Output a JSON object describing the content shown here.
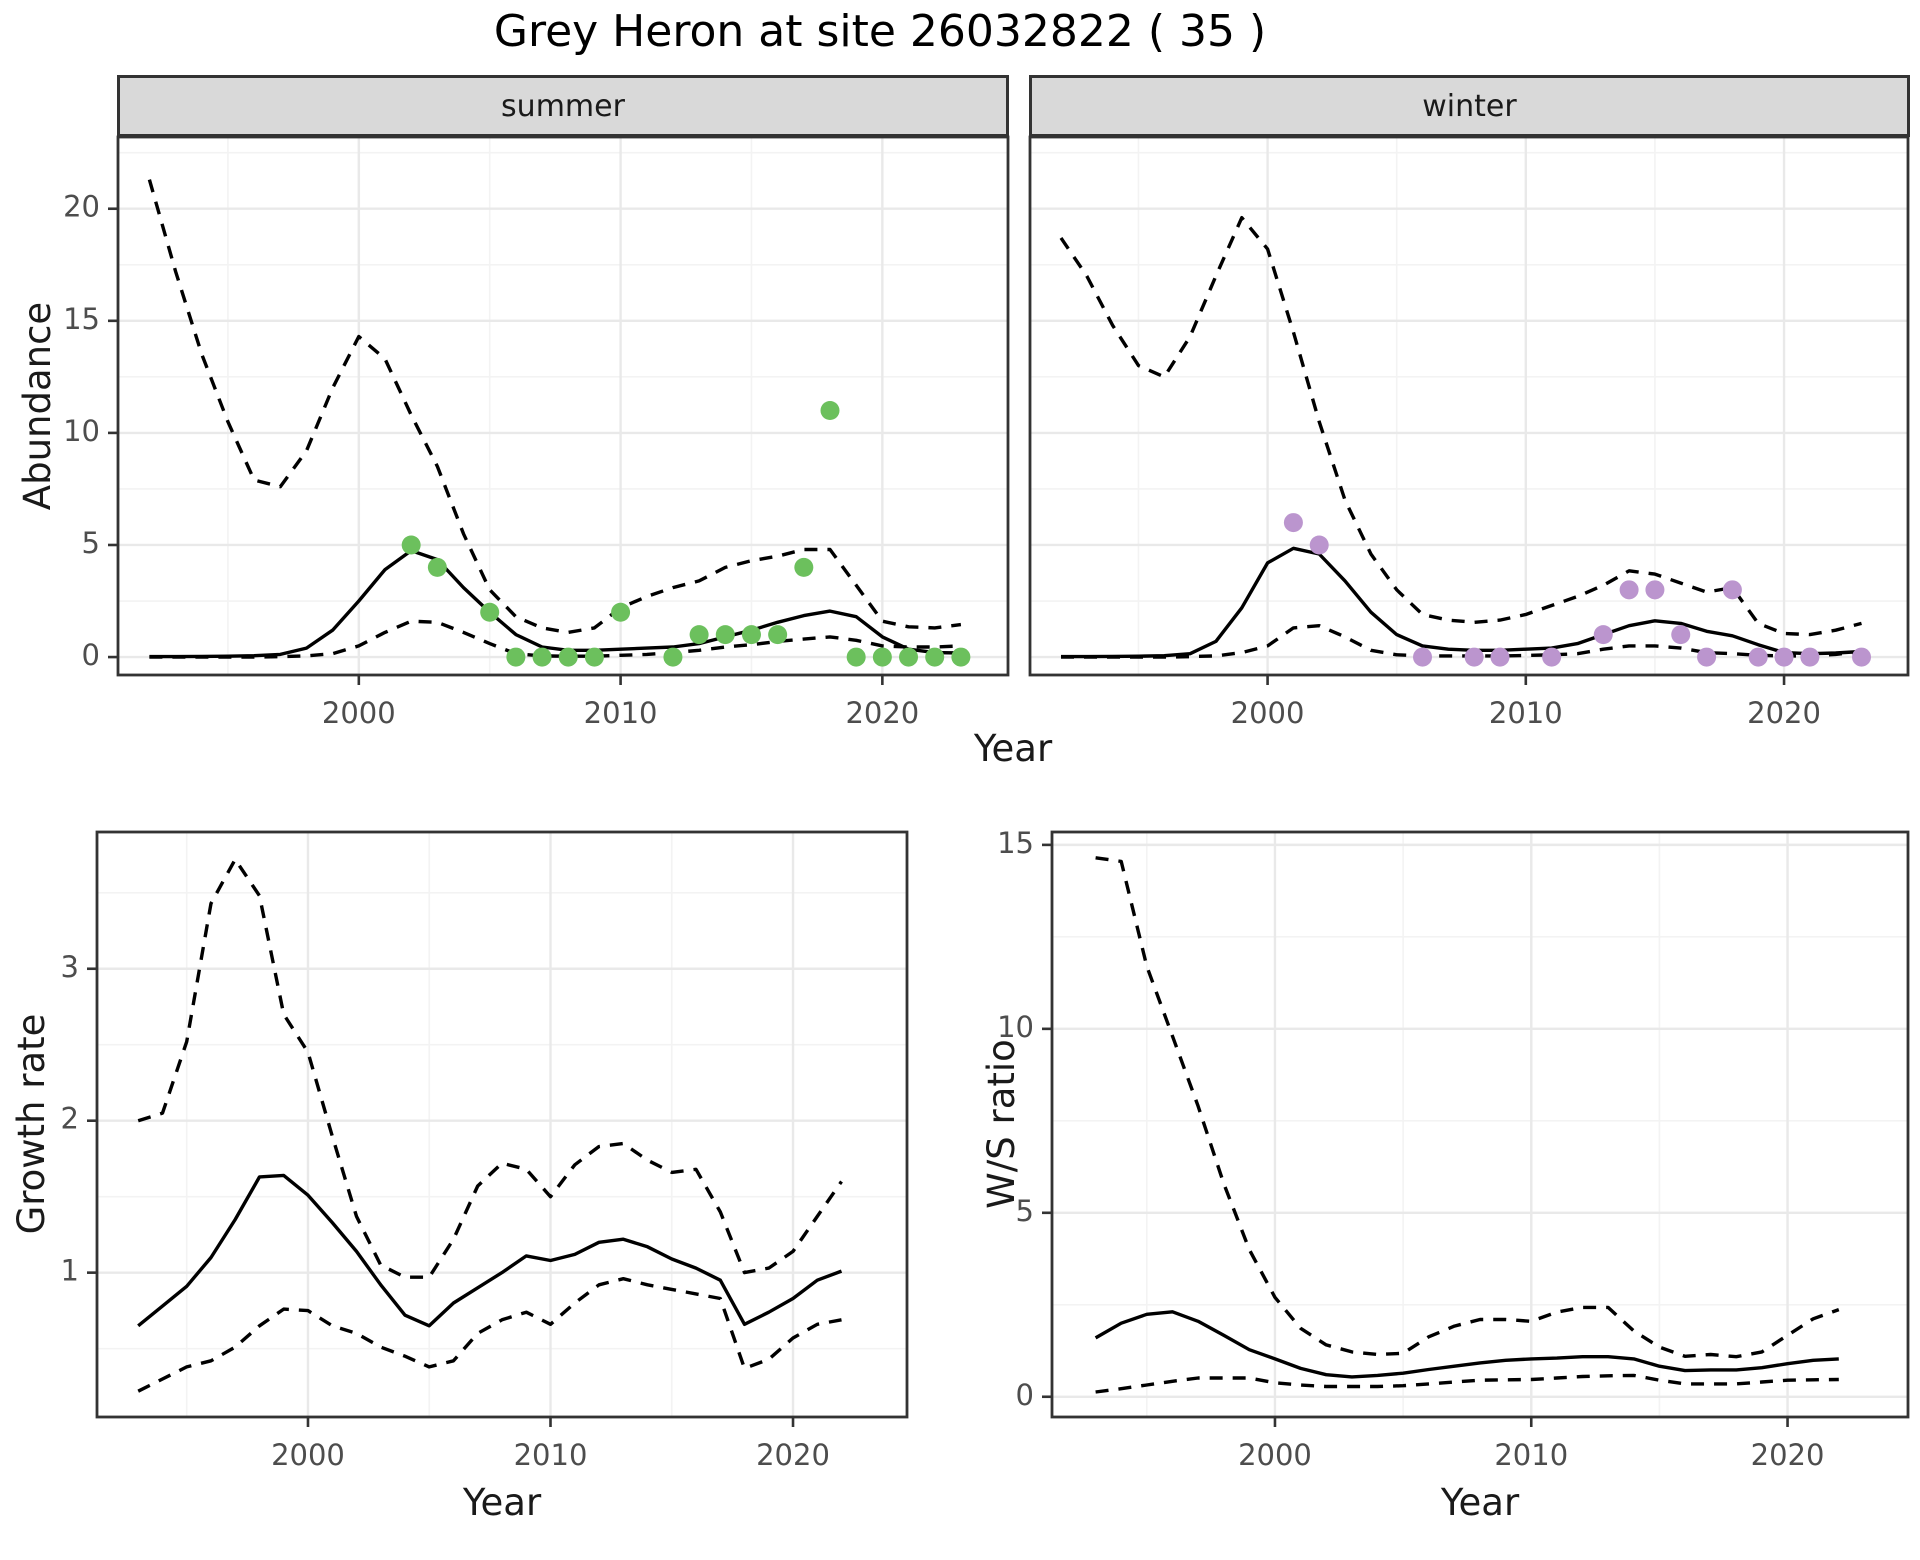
{
  "title": "Grey Heron at site 26032822 ( 35 )",
  "top_row": {
    "ylabel": "Abundance",
    "xlabel": "Year",
    "facets": [
      {
        "label": "summer"
      },
      {
        "label": "winter"
      }
    ]
  },
  "bottom_left": {
    "ylabel": "Growth rate",
    "xlabel": "Year"
  },
  "bottom_right": {
    "ylabel": "W/S ratio",
    "xlabel": "Year"
  },
  "colors": {
    "summer_point": "#6CC05D",
    "winter_point": "#BB95CE",
    "line": "#000000",
    "strip_bg": "#D9D9D9",
    "panel_border": "#333333",
    "grid_major": "#E9E9E9",
    "grid_minor": "#F3F3F3",
    "tick_label": "#4D4D4D",
    "tick_mark": "#333333"
  },
  "chart_data": [
    {
      "id": "abundance-summer",
      "type": "line",
      "title": "summer",
      "xlabel": "Year",
      "ylabel": "Abundance",
      "xlim": [
        1990.8,
        2024.8
      ],
      "ylim": [
        -0.8,
        23.2
      ],
      "xticks": [
        2000,
        2010,
        2020
      ],
      "xminor": [
        1995,
        2005,
        2015
      ],
      "yticks": [
        0,
        5,
        10,
        15,
        20
      ],
      "yminor": [
        2.5,
        7.5,
        12.5,
        17.5,
        22.5
      ],
      "point_color": "#6CC05D",
      "series": [
        {
          "name": "upper_ci",
          "style": "dashed",
          "x": [
            1992,
            1993,
            1994,
            1995,
            1996,
            1997,
            1998,
            1999,
            2000,
            2001,
            2002,
            2003,
            2004,
            2005,
            2006,
            2007,
            2008,
            2009,
            2010,
            2011,
            2012,
            2013,
            2014,
            2015,
            2016,
            2017,
            2018,
            2019,
            2020,
            2021,
            2022,
            2023
          ],
          "y": [
            21.3,
            17.2,
            13.5,
            10.5,
            7.9,
            7.6,
            9.2,
            12.0,
            14.3,
            13.3,
            10.8,
            8.5,
            5.5,
            3.0,
            1.8,
            1.3,
            1.1,
            1.3,
            2.2,
            2.7,
            3.1,
            3.4,
            4.0,
            4.3,
            4.5,
            4.8,
            4.8,
            3.2,
            1.6,
            1.35,
            1.3,
            1.45
          ]
        },
        {
          "name": "lower_ci",
          "style": "dashed",
          "x": [
            1992,
            1993,
            1994,
            1995,
            1996,
            1997,
            1998,
            1999,
            2000,
            2001,
            2002,
            2003,
            2004,
            2005,
            2006,
            2007,
            2008,
            2009,
            2010,
            2011,
            2012,
            2013,
            2014,
            2015,
            2016,
            2017,
            2018,
            2019,
            2020,
            2021,
            2022,
            2023
          ],
          "y": [
            0,
            0,
            0,
            0,
            0,
            0.02,
            0.05,
            0.15,
            0.5,
            1.1,
            1.6,
            1.55,
            1.1,
            0.6,
            0.15,
            0.05,
            0.04,
            0.04,
            0.08,
            0.12,
            0.2,
            0.3,
            0.45,
            0.55,
            0.7,
            0.8,
            0.9,
            0.75,
            0.5,
            0.45,
            0.45,
            0.5
          ]
        },
        {
          "name": "fit",
          "style": "solid",
          "x": [
            1992,
            1993,
            1994,
            1995,
            1996,
            1997,
            1998,
            1999,
            2000,
            2001,
            2002,
            2003,
            2004,
            2005,
            2006,
            2007,
            2008,
            2009,
            2010,
            2011,
            2012,
            2013,
            2014,
            2015,
            2016,
            2017,
            2018,
            2019,
            2020,
            2021,
            2022,
            2023
          ],
          "y": [
            0.02,
            0.02,
            0.03,
            0.04,
            0.06,
            0.12,
            0.4,
            1.2,
            2.5,
            3.9,
            4.75,
            4.35,
            3.1,
            2.0,
            1.0,
            0.45,
            0.3,
            0.3,
            0.35,
            0.4,
            0.45,
            0.6,
            0.9,
            1.2,
            1.55,
            1.85,
            2.05,
            1.8,
            0.9,
            0.35,
            0.2,
            0.18
          ]
        },
        {
          "name": "observed",
          "style": "points",
          "x": [
            2002,
            2003,
            2005,
            2006,
            2007,
            2008,
            2009,
            2010,
            2012,
            2013,
            2014,
            2015,
            2016,
            2017,
            2018,
            2019,
            2020,
            2021,
            2022,
            2023
          ],
          "y": [
            5,
            4,
            2,
            0,
            0,
            0,
            0,
            2,
            0,
            1,
            1,
            1,
            1,
            4,
            11,
            0,
            0,
            0,
            0,
            0
          ]
        }
      ]
    },
    {
      "id": "abundance-winter",
      "type": "line",
      "title": "winter",
      "xlabel": "Year",
      "ylabel": "Abundance",
      "xlim": [
        1990.8,
        2024.8
      ],
      "ylim": [
        -0.8,
        23.2
      ],
      "xticks": [
        2000,
        2010,
        2020
      ],
      "xminor": [
        1995,
        2005,
        2015
      ],
      "yticks": [
        0,
        5,
        10,
        15,
        20
      ],
      "yminor": [
        2.5,
        7.5,
        12.5,
        17.5,
        22.5
      ],
      "point_color": "#BB95CE",
      "series": [
        {
          "name": "upper_ci",
          "style": "dashed",
          "x": [
            1992,
            1993,
            1994,
            1995,
            1996,
            1997,
            1998,
            1999,
            2000,
            2001,
            2002,
            2003,
            2004,
            2005,
            2006,
            2007,
            2008,
            2009,
            2010,
            2011,
            2012,
            2013,
            2014,
            2015,
            2016,
            2017,
            2018,
            2019,
            2020,
            2021,
            2022,
            2023
          ],
          "y": [
            18.7,
            17.0,
            14.8,
            13.0,
            12.5,
            14.3,
            17.0,
            19.6,
            18.2,
            14.5,
            10.5,
            7.0,
            4.6,
            3.0,
            1.9,
            1.65,
            1.55,
            1.65,
            1.9,
            2.3,
            2.7,
            3.2,
            3.85,
            3.7,
            3.3,
            2.9,
            3.1,
            1.5,
            1.05,
            1.0,
            1.2,
            1.5
          ]
        },
        {
          "name": "lower_ci",
          "style": "dashed",
          "x": [
            1992,
            1993,
            1994,
            1995,
            1996,
            1997,
            1998,
            1999,
            2000,
            2001,
            2002,
            2003,
            2004,
            2005,
            2006,
            2007,
            2008,
            2009,
            2010,
            2011,
            2012,
            2013,
            2014,
            2015,
            2016,
            2017,
            2018,
            2019,
            2020,
            2021,
            2022,
            2023
          ],
          "y": [
            0,
            0,
            0,
            0,
            0,
            0.02,
            0.05,
            0.2,
            0.5,
            1.3,
            1.4,
            0.9,
            0.3,
            0.1,
            0.05,
            0.05,
            0.05,
            0.05,
            0.07,
            0.1,
            0.15,
            0.35,
            0.5,
            0.5,
            0.4,
            0.2,
            0.15,
            0.08,
            0.05,
            0.05,
            0.12,
            0.25
          ]
        },
        {
          "name": "fit",
          "style": "solid",
          "x": [
            1992,
            1993,
            1994,
            1995,
            1996,
            1997,
            1998,
            1999,
            2000,
            2001,
            2002,
            2003,
            2004,
            2005,
            2006,
            2007,
            2008,
            2009,
            2010,
            2011,
            2012,
            2013,
            2014,
            2015,
            2016,
            2017,
            2018,
            2019,
            2020,
            2021,
            2022,
            2023
          ],
          "y": [
            0.02,
            0.02,
            0.03,
            0.04,
            0.06,
            0.15,
            0.7,
            2.2,
            4.2,
            4.85,
            4.6,
            3.4,
            2.0,
            1.0,
            0.5,
            0.35,
            0.3,
            0.3,
            0.35,
            0.4,
            0.6,
            1.0,
            1.4,
            1.62,
            1.5,
            1.15,
            0.95,
            0.55,
            0.2,
            0.15,
            0.18,
            0.25
          ]
        },
        {
          "name": "observed",
          "style": "points",
          "x": [
            2001,
            2002,
            2006,
            2008,
            2009,
            2011,
            2013,
            2014,
            2015,
            2016,
            2017,
            2018,
            2019,
            2020,
            2021,
            2023
          ],
          "y": [
            6,
            5,
            0,
            0,
            0,
            0,
            1,
            3,
            3,
            1,
            0,
            3,
            0,
            0,
            0,
            0
          ]
        }
      ]
    },
    {
      "id": "growth-rate",
      "type": "line",
      "title": "",
      "xlabel": "Year",
      "ylabel": "Growth rate",
      "xlim": [
        1991.3,
        2024.7
      ],
      "ylim": [
        0.05,
        3.9
      ],
      "xticks": [
        2000,
        2010,
        2020
      ],
      "xminor": [
        1995,
        2005,
        2015
      ],
      "yticks": [
        1,
        2,
        3
      ],
      "yminor": [
        0.5,
        1.5,
        2.5,
        3.5
      ],
      "point_color": "#000000",
      "series": [
        {
          "name": "upper_ci",
          "style": "dashed",
          "x": [
            1993,
            1994,
            1995,
            1996,
            1997,
            1998,
            1999,
            2000,
            2001,
            2002,
            2003,
            2004,
            2005,
            2006,
            2007,
            2008,
            2009,
            2010,
            2011,
            2012,
            2013,
            2014,
            2015,
            2016,
            2017,
            2018,
            2019,
            2020,
            2021,
            2022
          ],
          "y": [
            2.0,
            2.05,
            2.52,
            3.43,
            3.72,
            3.48,
            2.7,
            2.45,
            1.9,
            1.37,
            1.05,
            0.97,
            0.97,
            1.22,
            1.57,
            1.72,
            1.68,
            1.5,
            1.71,
            1.83,
            1.85,
            1.74,
            1.66,
            1.68,
            1.4,
            1.0,
            1.03,
            1.14,
            1.37,
            1.6
          ]
        },
        {
          "name": "lower_ci",
          "style": "dashed",
          "x": [
            1993,
            1994,
            1995,
            1996,
            1997,
            1998,
            1999,
            2000,
            2001,
            2002,
            2003,
            2004,
            2005,
            2006,
            2007,
            2008,
            2009,
            2010,
            2011,
            2012,
            2013,
            2014,
            2015,
            2016,
            2017,
            2018,
            2019,
            2020,
            2021,
            2022
          ],
          "y": [
            0.22,
            0.3,
            0.38,
            0.42,
            0.51,
            0.65,
            0.76,
            0.75,
            0.65,
            0.6,
            0.51,
            0.45,
            0.38,
            0.42,
            0.6,
            0.69,
            0.74,
            0.66,
            0.8,
            0.92,
            0.96,
            0.92,
            0.89,
            0.86,
            0.83,
            0.37,
            0.43,
            0.57,
            0.66,
            0.69
          ]
        },
        {
          "name": "fit",
          "style": "solid",
          "x": [
            1993,
            1994,
            1995,
            1996,
            1997,
            1998,
            1999,
            2000,
            2001,
            2002,
            2003,
            2004,
            2005,
            2006,
            2007,
            2008,
            2009,
            2010,
            2011,
            2012,
            2013,
            2014,
            2015,
            2016,
            2017,
            2018,
            2019,
            2020,
            2021,
            2022
          ],
          "y": [
            0.65,
            0.78,
            0.91,
            1.1,
            1.35,
            1.63,
            1.64,
            1.51,
            1.33,
            1.14,
            0.92,
            0.72,
            0.65,
            0.8,
            0.9,
            1.0,
            1.11,
            1.08,
            1.12,
            1.2,
            1.22,
            1.17,
            1.09,
            1.03,
            0.95,
            0.66,
            0.74,
            0.83,
            0.95,
            1.01
          ]
        }
      ]
    },
    {
      "id": "ws-ratio",
      "type": "line",
      "title": "",
      "xlabel": "Year",
      "ylabel": "W/S ratio",
      "xlim": [
        1991.3,
        2024.7
      ],
      "ylim": [
        -0.55,
        15.35
      ],
      "xticks": [
        2000,
        2010,
        2020
      ],
      "xminor": [
        1995,
        2005,
        2015
      ],
      "yticks": [
        0,
        5,
        10,
        15
      ],
      "yminor": [
        2.5,
        7.5,
        12.5
      ],
      "point_color": "#000000",
      "series": [
        {
          "name": "upper_ci",
          "style": "dashed",
          "x": [
            1993,
            1994,
            1995,
            1996,
            1997,
            1998,
            1999,
            2000,
            2001,
            2002,
            2003,
            2004,
            2005,
            2006,
            2007,
            2008,
            2009,
            2010,
            2011,
            2012,
            2013,
            2014,
            2015,
            2016,
            2017,
            2018,
            2019,
            2020,
            2021,
            2022
          ],
          "y": [
            14.65,
            14.55,
            11.7,
            9.8,
            7.9,
            5.8,
            4.0,
            2.7,
            1.86,
            1.41,
            1.22,
            1.15,
            1.18,
            1.63,
            1.92,
            2.1,
            2.1,
            2.05,
            2.3,
            2.43,
            2.43,
            1.79,
            1.35,
            1.1,
            1.15,
            1.09,
            1.22,
            1.67,
            2.12,
            2.37
          ]
        },
        {
          "name": "lower_ci",
          "style": "dashed",
          "x": [
            1993,
            1994,
            1995,
            1996,
            1997,
            1998,
            1999,
            2000,
            2001,
            2002,
            2003,
            2004,
            2005,
            2006,
            2007,
            2008,
            2009,
            2010,
            2011,
            2012,
            2013,
            2014,
            2015,
            2016,
            2017,
            2018,
            2019,
            2020,
            2021,
            2022
          ],
          "y": [
            0.13,
            0.22,
            0.32,
            0.42,
            0.51,
            0.51,
            0.51,
            0.38,
            0.32,
            0.28,
            0.28,
            0.28,
            0.3,
            0.35,
            0.4,
            0.45,
            0.46,
            0.47,
            0.51,
            0.55,
            0.57,
            0.58,
            0.45,
            0.35,
            0.35,
            0.35,
            0.4,
            0.45,
            0.46,
            0.47
          ]
        },
        {
          "name": "fit",
          "style": "solid",
          "x": [
            1993,
            1994,
            1995,
            1996,
            1997,
            1998,
            1999,
            2000,
            2001,
            2002,
            2003,
            2004,
            2005,
            2006,
            2007,
            2008,
            2009,
            2010,
            2011,
            2012,
            2013,
            2014,
            2015,
            2016,
            2017,
            2018,
            2019,
            2020,
            2021,
            2022
          ],
          "y": [
            1.6,
            2.0,
            2.24,
            2.31,
            2.05,
            1.67,
            1.28,
            1.03,
            0.77,
            0.6,
            0.54,
            0.58,
            0.64,
            0.74,
            0.83,
            0.92,
            0.99,
            1.03,
            1.05,
            1.09,
            1.09,
            1.03,
            0.83,
            0.71,
            0.73,
            0.73,
            0.79,
            0.9,
            0.99,
            1.03
          ]
        }
      ]
    }
  ]
}
